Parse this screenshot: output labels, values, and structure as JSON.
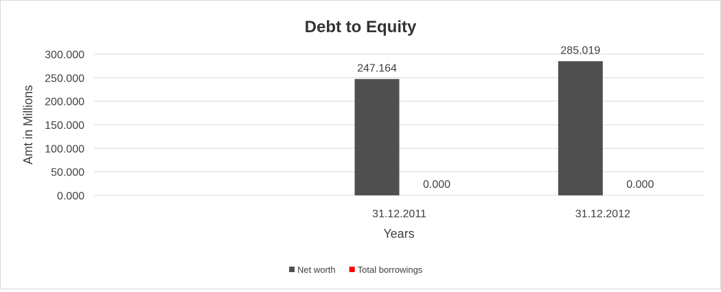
{
  "chart_data": {
    "type": "bar",
    "title": "Debt to Equity",
    "xlabel": "Years",
    "ylabel": "Amt in Millions",
    "categories": [
      "",
      "31.12.2011",
      "31.12.2012"
    ],
    "series": [
      {
        "name": "Net worth",
        "color": "#505050",
        "values": [
          null,
          247.164,
          285.019
        ],
        "labels": [
          "",
          "247.164",
          "285.019"
        ]
      },
      {
        "name": "Total borrowings",
        "color": "#ff0000",
        "values": [
          null,
          0.0,
          0.0
        ],
        "labels": [
          "",
          "0.000",
          "0.000"
        ]
      }
    ],
    "ylim": [
      0,
      300
    ],
    "yticks": [
      "0.000",
      "50.000",
      "100.000",
      "150.000",
      "200.000",
      "250.000",
      "300.000"
    ],
    "grid": true,
    "legend": "bottom"
  }
}
